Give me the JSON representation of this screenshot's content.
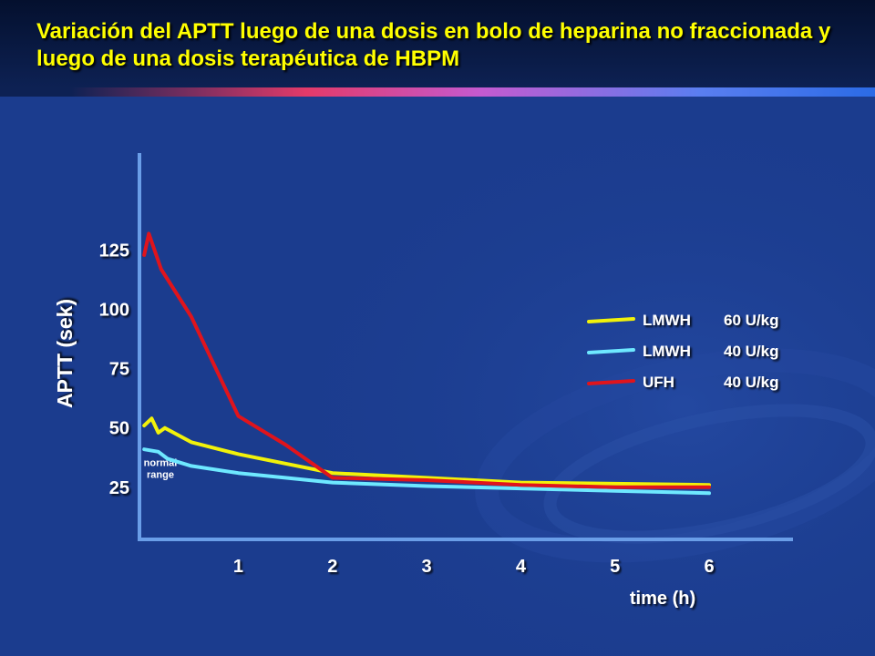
{
  "title": "Variación del APTT luego de una dosis en bolo de heparina no fraccionada y luego de una dosis terapéutica de HBPM",
  "chart_data": {
    "type": "line",
    "ylabel": "APTT (sek)",
    "xlabel": "time (h)",
    "x_ticks": [
      "1",
      "2",
      "3",
      "4",
      "5",
      "6"
    ],
    "y_ticks": [
      "25",
      "50",
      "75",
      "100",
      "125"
    ],
    "xlim": [
      -0.05,
      6.9
    ],
    "ylim": [
      3,
      166
    ],
    "annotation": "normal range",
    "colors": {
      "lmwh60": "#f2f20a",
      "lmwh40": "#6ee8ff",
      "ufh": "#e0141c",
      "axis": "#6a9ee8"
    },
    "legend": {
      "placement": "right",
      "entries": [
        {
          "label": "LMWH",
          "dose": "60 U/kg"
        },
        {
          "label": "LMWH",
          "dose": "40 U/kg"
        },
        {
          "label": "UFH",
          "dose": "40 U/kg"
        }
      ]
    },
    "series": [
      {
        "x": [
          0,
          0.08,
          0.15,
          0.22,
          0.5,
          1,
          1.5,
          2,
          3,
          4,
          5,
          6
        ],
        "y": [
          51,
          54,
          48,
          50,
          44,
          39,
          35,
          31,
          29,
          27,
          26.5,
          26
        ]
      },
      {
        "x": [
          0,
          0.15,
          0.25,
          0.5,
          1,
          1.5,
          2,
          3,
          4,
          5,
          6
        ],
        "y": [
          41,
          40,
          37,
          34,
          31,
          29,
          27,
          25.5,
          24.5,
          23.5,
          22.5
        ]
      },
      {
        "x": [
          0,
          0.05,
          0.18,
          0.5,
          1,
          1.5,
          2,
          3,
          4,
          5,
          6
        ],
        "y": [
          123,
          132,
          117,
          97,
          55,
          43,
          29,
          28,
          26,
          25,
          25
        ]
      }
    ]
  }
}
